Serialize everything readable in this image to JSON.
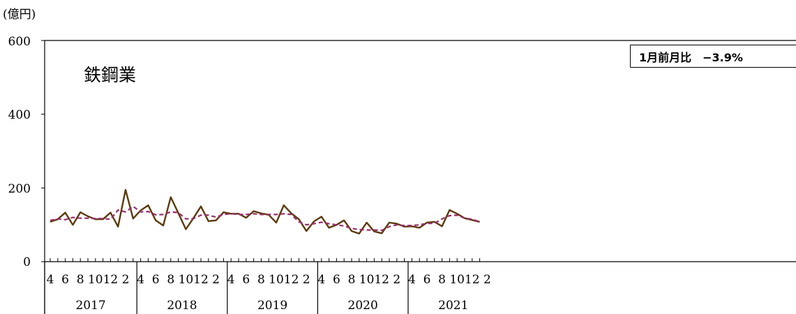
{
  "chart_data": {
    "type": "line",
    "title": "鉄鋼業",
    "unit_label": "(億円)",
    "annotation": "1月前月比　−3.9%",
    "ylim": [
      0,
      600
    ],
    "yticks": [
      "0",
      "200",
      "400",
      "600"
    ],
    "month_tick_labels": [
      "4",
      "6",
      "8",
      "10",
      "12",
      "2",
      "4",
      "6",
      "8",
      "10",
      "12",
      "2",
      "4",
      "6",
      "8",
      "10",
      "12",
      "2",
      "4",
      "6",
      "8",
      "10",
      "12",
      "2",
      "4",
      "6",
      "8",
      "10",
      "12",
      "2"
    ],
    "year_labels": [
      "2017",
      "2018",
      "2019",
      "2020",
      "2021"
    ],
    "x": [
      "2017-04",
      "2017-05",
      "2017-06",
      "2017-07",
      "2017-08",
      "2017-09",
      "2017-10",
      "2017-11",
      "2017-12",
      "2018-01",
      "2018-02",
      "2018-03",
      "2018-04",
      "2018-05",
      "2018-06",
      "2018-07",
      "2018-08",
      "2018-09",
      "2018-10",
      "2018-11",
      "2018-12",
      "2019-01",
      "2019-02",
      "2019-03",
      "2019-04",
      "2019-05",
      "2019-06",
      "2019-07",
      "2019-08",
      "2019-09",
      "2019-10",
      "2019-11",
      "2019-12",
      "2020-01",
      "2020-02",
      "2020-03",
      "2020-04",
      "2020-05",
      "2020-06",
      "2020-07",
      "2020-08",
      "2020-09",
      "2020-10",
      "2020-11",
      "2020-12",
      "2021-01",
      "2021-02",
      "2021-03",
      "2021-04",
      "2021-05",
      "2021-06",
      "2021-07",
      "2021-08",
      "2021-09",
      "2021-10",
      "2021-11",
      "2021-12",
      "2022-01"
    ],
    "series": [
      {
        "style": "solid",
        "color": "#5c3a0c",
        "values": [
          108,
          115,
          133,
          100,
          134,
          123,
          115,
          115,
          133,
          95,
          195,
          117,
          139,
          153,
          112,
          98,
          175,
          132,
          88,
          118,
          150,
          110,
          112,
          134,
          130,
          130,
          119,
          137,
          131,
          127,
          106,
          153,
          131,
          115,
          83,
          109,
          122,
          92,
          100,
          112,
          83,
          76,
          106,
          82,
          77,
          106,
          103,
          95,
          96,
          92,
          106,
          108,
          96,
          140,
          130,
          118,
          113,
          108
        ],
        "values_sparse": true
      },
      {
        "style": "dashed",
        "color": "#9b2d6e",
        "values": [
          112,
          116,
          114,
          120,
          118,
          118,
          117,
          117,
          115,
          140,
          135,
          150,
          135,
          136,
          127,
          128,
          135,
          133,
          116,
          117,
          126,
          126,
          121,
          128,
          130,
          128,
          128,
          130,
          128,
          128,
          128,
          130,
          128,
          108,
          100,
          103,
          107,
          103,
          100,
          97,
          90,
          87,
          86,
          86,
          85,
          95,
          100,
          98,
          98,
          100,
          104,
          104,
          116,
          125,
          126,
          118,
          115,
          108
        ]
      }
    ],
    "grid": false,
    "legend": "none"
  }
}
